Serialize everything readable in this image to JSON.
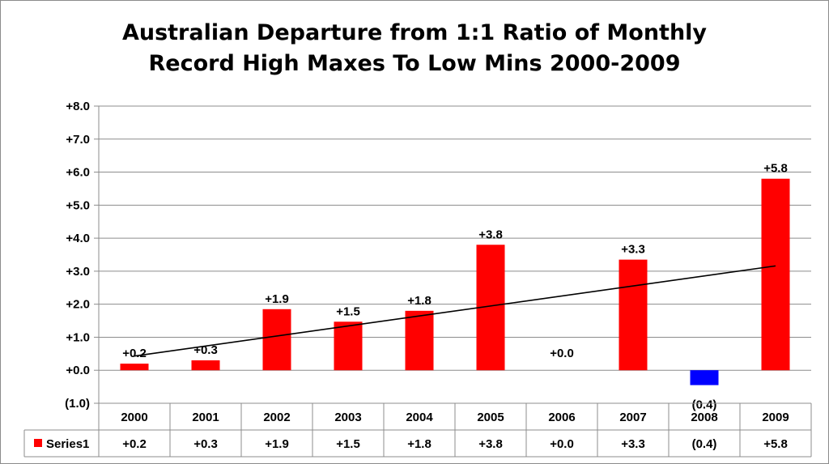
{
  "chart_data": {
    "type": "bar",
    "title_lines": [
      "Australian Departure from 1:1 Ratio of Monthly",
      "Record High Maxes To Low Mins 2000-2009"
    ],
    "categories": [
      "2000",
      "2001",
      "2002",
      "2003",
      "2004",
      "2005",
      "2006",
      "2007",
      "2008",
      "2009"
    ],
    "series": [
      {
        "name": "Series1",
        "values": [
          0.2,
          0.3,
          1.85,
          1.47,
          1.8,
          3.8,
          0.0,
          3.35,
          -0.45,
          5.8
        ],
        "labels": [
          "+0.2",
          "+0.3",
          "+1.9",
          "+1.5",
          "+1.8",
          "+3.8",
          "+0.0",
          "+3.3",
          "(0.4)",
          "+5.8"
        ],
        "color": "#ff0000",
        "negative_color": "#0000ff"
      }
    ],
    "trendline": {
      "type": "linear",
      "start": 0.43,
      "end": 3.16,
      "color": "#000000"
    },
    "yaxis": {
      "min": -1.0,
      "max": 8.0,
      "step": 1.0,
      "tick_labels": [
        "(1.0)",
        "+0.0",
        "+1.0",
        "+2.0",
        "+3.0",
        "+4.0",
        "+5.0",
        "+6.0",
        "+7.0",
        "+8.0"
      ],
      "negative_label_color": "#0000cc"
    },
    "grid": true,
    "data_table": true,
    "xlabel": "",
    "ylabel": ""
  }
}
